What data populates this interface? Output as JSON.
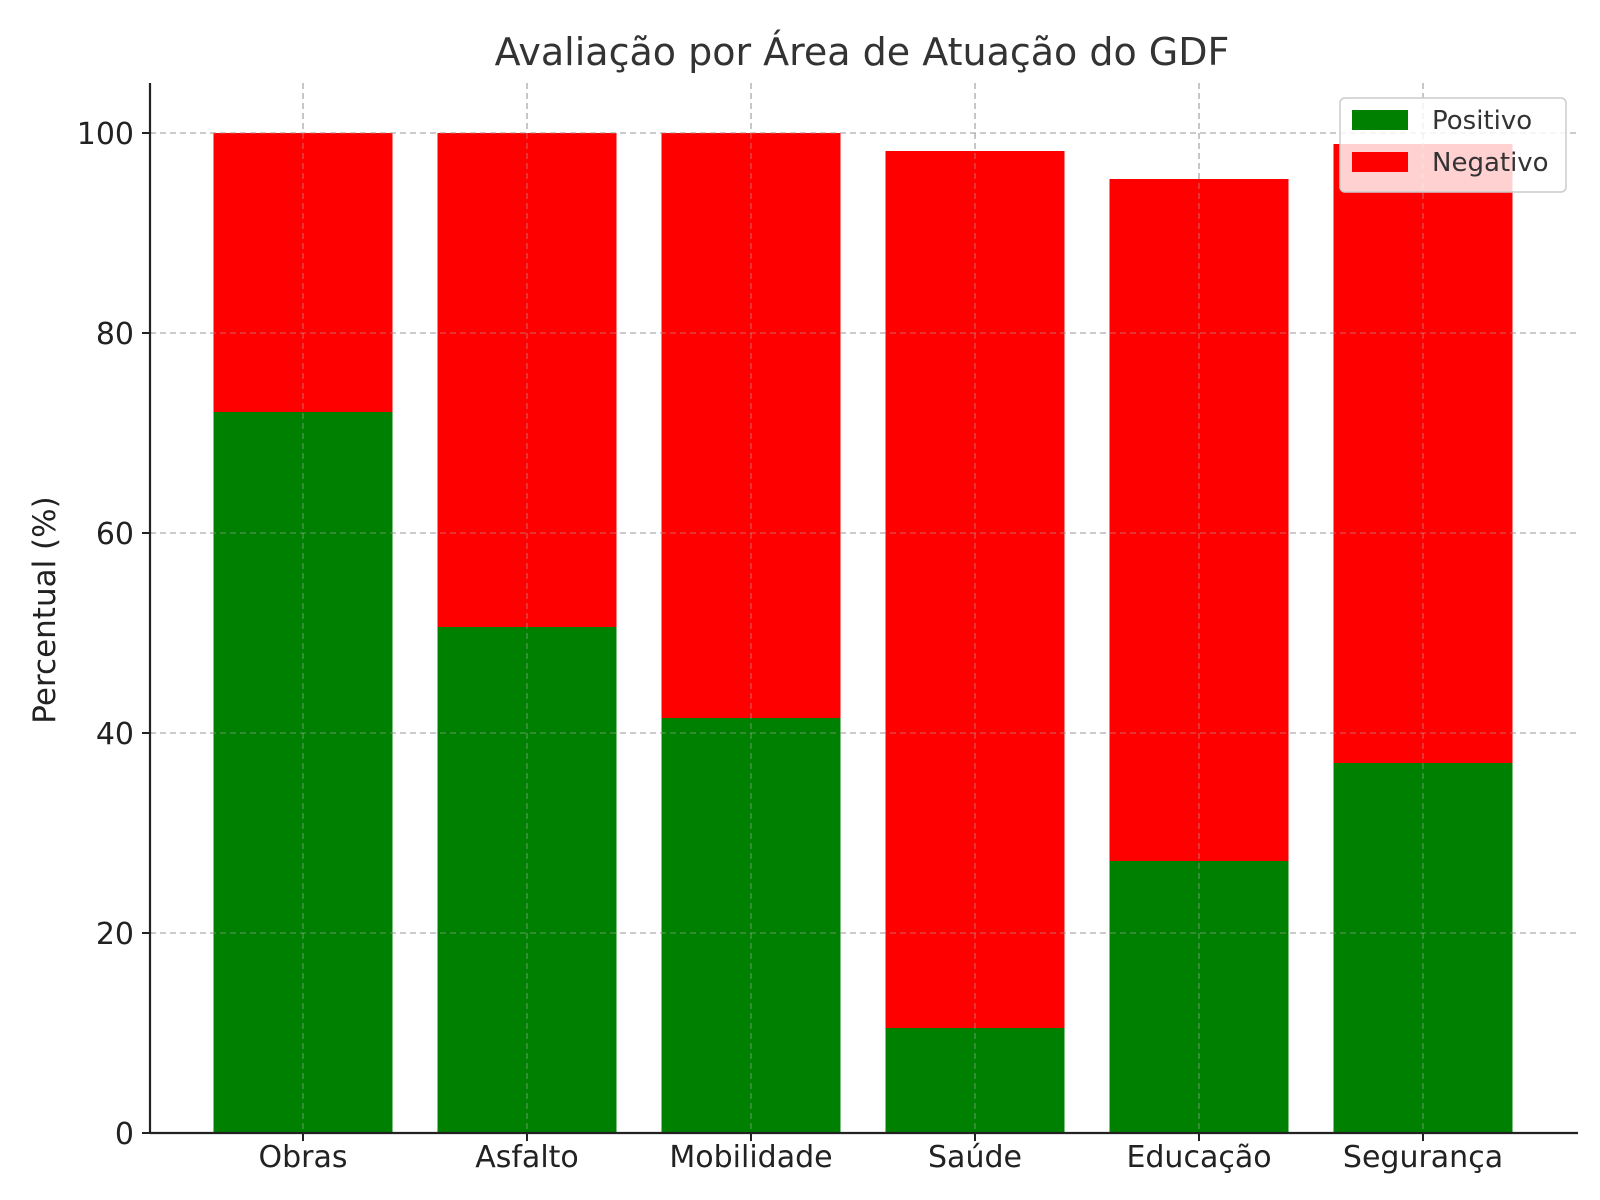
{
  "chart_data": {
    "type": "bar",
    "stacked": true,
    "title": "Avaliação por Área de Atuação do GDF",
    "xlabel": "",
    "ylabel": "Percentual (%)",
    "categories": [
      "Obras",
      "Asfalto",
      "Mobilidade",
      "Saúde",
      "Educação",
      "Segurança"
    ],
    "series": [
      {
        "name": "Positivo",
        "color": "#008000",
        "values": [
          72.1,
          50.6,
          41.5,
          10.5,
          27.2,
          37.0
        ]
      },
      {
        "name": "Negativo",
        "color": "#ff0000",
        "values": [
          27.9,
          49.4,
          58.5,
          87.7,
          68.2,
          61.9
        ]
      }
    ],
    "ylim": [
      0,
      105
    ],
    "yticks": [
      0,
      20,
      40,
      60,
      80,
      100
    ],
    "grid": true,
    "legend_position": "top-right"
  }
}
